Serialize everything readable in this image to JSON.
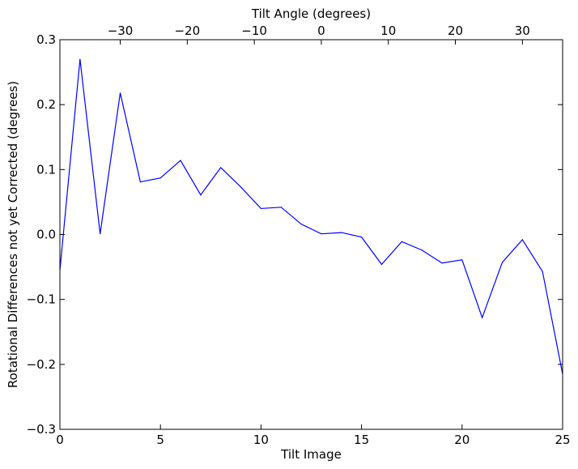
{
  "chart_data": {
    "type": "line",
    "title": "",
    "xlabel": "Tilt Image",
    "ylabel": "Rotational Differences not yet Corrected (degrees)",
    "top_xlabel": "Tilt Angle (degrees)",
    "xlim": [
      0,
      25
    ],
    "ylim": [
      -0.3,
      0.3
    ],
    "top_xlim": [
      -39,
      36
    ],
    "x_ticks": [
      0,
      5,
      10,
      15,
      20,
      25
    ],
    "x_tick_labels": [
      "0",
      "5",
      "10",
      "15",
      "20",
      "25"
    ],
    "y_ticks": [
      -0.3,
      -0.2,
      -0.1,
      0.0,
      0.1,
      0.2,
      0.3
    ],
    "y_tick_labels": [
      "−0.3",
      "−0.2",
      "−0.1",
      "0.0",
      "0.1",
      "0.2",
      "0.3"
    ],
    "top_x_ticks": [
      -30,
      -20,
      -10,
      0,
      10,
      20,
      30
    ],
    "top_x_tick_labels": [
      "−30",
      "−20",
      "−10",
      "0",
      "10",
      "20",
      "30"
    ],
    "grid": false,
    "series": [
      {
        "color": "#0000ff",
        "x": [
          0,
          1,
          2,
          3,
          4,
          5,
          6,
          7,
          8,
          9,
          10,
          11,
          12,
          13,
          14,
          15,
          16,
          17,
          18,
          19,
          20,
          21,
          22,
          23,
          24,
          25
        ],
        "values": [
          -0.055,
          0.27,
          0.001,
          0.218,
          0.081,
          0.087,
          0.114,
          0.061,
          0.103,
          0.073,
          0.04,
          0.042,
          0.016,
          0.001,
          0.003,
          -0.004,
          -0.046,
          -0.011,
          -0.024,
          -0.044,
          -0.039,
          -0.128,
          -0.043,
          -0.008,
          -0.057,
          -0.215
        ]
      }
    ]
  }
}
